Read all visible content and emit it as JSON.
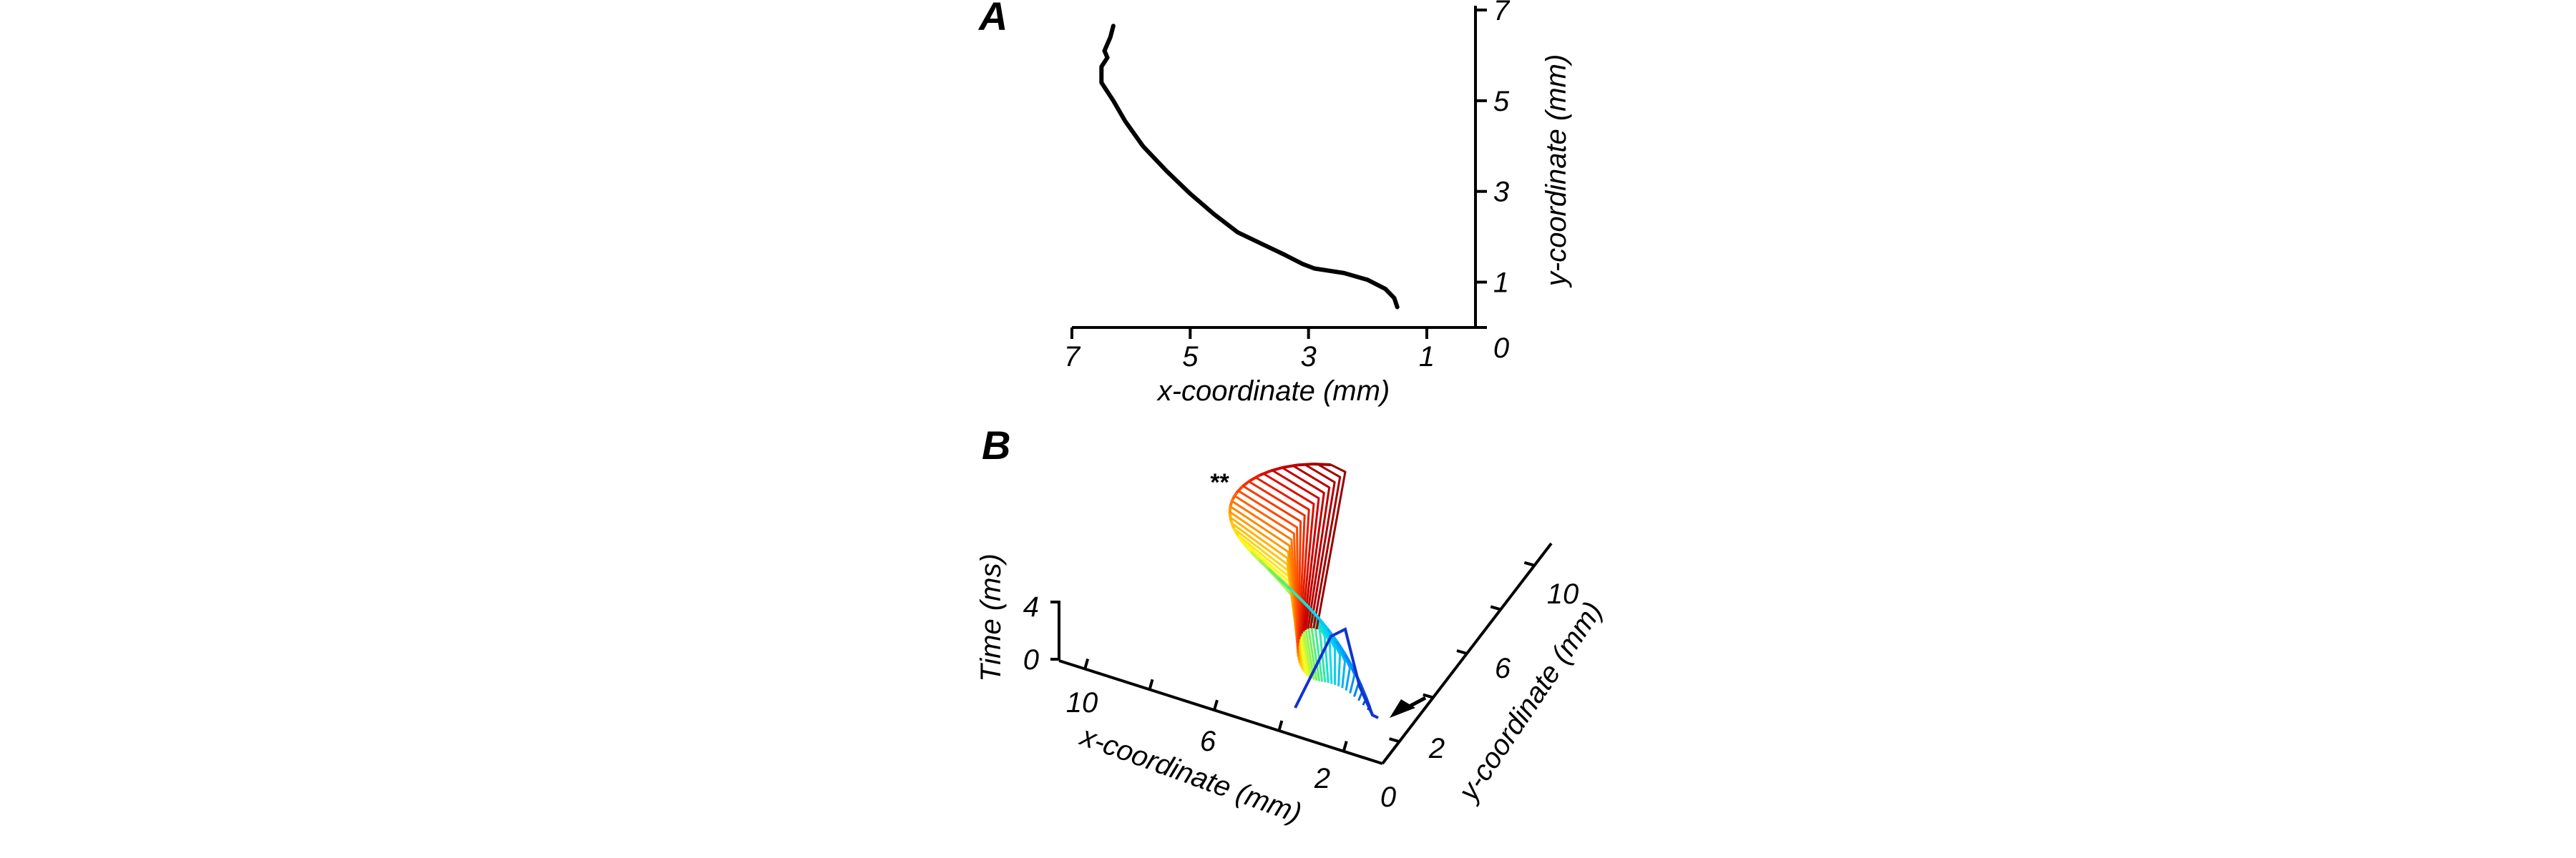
{
  "panels": {
    "a": "A",
    "b": "B"
  },
  "chart_data": [
    {
      "type": "line",
      "xlabel": "x-coordinate (mm)",
      "ylabel": "y-coordinate (mm)",
      "xlim": [
        7.0,
        0.0
      ],
      "ylim": [
        0,
        7
      ],
      "x_reversed": true,
      "y_axis_side": "right",
      "xticks": [
        7,
        5,
        3,
        1
      ],
      "yticks": [
        0,
        1,
        3,
        5,
        7
      ],
      "xtick_labels": [
        "7",
        "5",
        "3",
        "1"
      ],
      "ytick_labels": [
        "0",
        "1",
        "3",
        "5",
        "7"
      ],
      "series": [
        {
          "x": [
            1.5,
            1.55,
            1.7,
            2.0,
            2.4,
            2.9,
            3.1,
            3.4,
            3.8,
            4.2,
            4.6,
            5.0,
            5.4,
            5.8,
            6.1,
            6.3,
            6.5,
            6.5,
            6.4,
            6.45,
            6.35,
            6.3
          ],
          "y": [
            0.45,
            0.65,
            0.85,
            1.05,
            1.2,
            1.3,
            1.4,
            1.6,
            1.85,
            2.1,
            2.5,
            2.95,
            3.45,
            4.0,
            4.55,
            5.0,
            5.4,
            5.75,
            5.95,
            6.1,
            6.4,
            6.65
          ]
        }
      ]
    },
    {
      "type": "line",
      "subtype": "3d-waterfall",
      "xlabel": "x-coordinate (mm)",
      "ylabel": "y-coordinate (mm)",
      "zlabel": "Time (ms)",
      "xticks": [
        10,
        6,
        2
      ],
      "yticks": [
        2,
        6,
        10
      ],
      "ztick_labels": [
        "0",
        "4"
      ],
      "xtick_labels": [
        "10",
        "6",
        "2"
      ],
      "ytick_labels": [
        "2",
        "6",
        "10"
      ],
      "origin_label": "0",
      "colormap": [
        "#0033cc",
        "#0090ff",
        "#00ddee",
        "#66ee66",
        "#ffff22",
        "#ffaa00",
        "#ff4400",
        "#cc0000",
        "#990000"
      ],
      "n_traces": 40,
      "star_label": "**",
      "arrow": "arrow-indicator"
    }
  ]
}
